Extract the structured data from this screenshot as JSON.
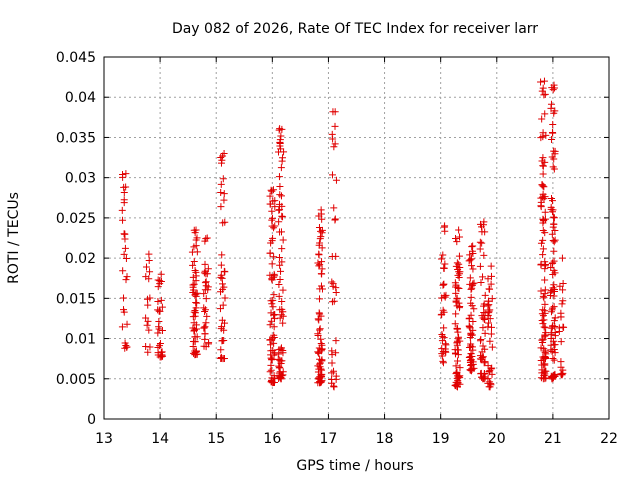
{
  "chart_data": {
    "type": "scatter",
    "title": "Day 082 of 2026, Rate Of TEC Index for receiver larr",
    "xlabel": "GPS time / hours",
    "ylabel": "ROTI / TECUs",
    "xlim": [
      13,
      22
    ],
    "ylim": [
      0,
      0.045
    ],
    "grid": true,
    "marker": "+",
    "color": "#e00000",
    "x_ticks": [
      "13",
      "14",
      "15",
      "16",
      "17",
      "18",
      "19",
      "20",
      "21",
      "22"
    ],
    "y_ticks": [
      "0",
      "0.005",
      "0.01",
      "0.015",
      "0.02",
      "0.025",
      "0.03",
      "0.035",
      "0.04",
      "0.045"
    ],
    "clusters": [
      {
        "x": 13.37,
        "y_min": 0.0088,
        "y_max": 0.0305,
        "count": 26
      },
      {
        "x": 13.78,
        "y_min": 0.0083,
        "y_max": 0.0205,
        "count": 14
      },
      {
        "x": 14.0,
        "y_min": 0.0077,
        "y_max": 0.018,
        "count": 28
      },
      {
        "x": 14.62,
        "y_min": 0.008,
        "y_max": 0.0235,
        "count": 55
      },
      {
        "x": 14.82,
        "y_min": 0.009,
        "y_max": 0.0225,
        "count": 30
      },
      {
        "x": 15.12,
        "y_min": 0.0075,
        "y_max": 0.033,
        "count": 40
      },
      {
        "x": 16.0,
        "y_min": 0.0045,
        "y_max": 0.0285,
        "count": 70
      },
      {
        "x": 16.15,
        "y_min": 0.005,
        "y_max": 0.036,
        "count": 70
      },
      {
        "x": 16.85,
        "y_min": 0.0045,
        "y_max": 0.026,
        "count": 75
      },
      {
        "x": 17.1,
        "y_min": 0.004,
        "y_max": 0.0382,
        "count": 30
      },
      {
        "x": 19.05,
        "y_min": 0.007,
        "y_max": 0.024,
        "count": 35
      },
      {
        "x": 19.3,
        "y_min": 0.004,
        "y_max": 0.0235,
        "count": 70
      },
      {
        "x": 19.55,
        "y_min": 0.006,
        "y_max": 0.0215,
        "count": 60
      },
      {
        "x": 19.75,
        "y_min": 0.005,
        "y_max": 0.0245,
        "count": 45
      },
      {
        "x": 19.88,
        "y_min": 0.004,
        "y_max": 0.019,
        "count": 35
      },
      {
        "x": 20.83,
        "y_min": 0.005,
        "y_max": 0.042,
        "count": 95
      },
      {
        "x": 21.0,
        "y_min": 0.005,
        "y_max": 0.0415,
        "count": 85
      },
      {
        "x": 21.15,
        "y_min": 0.0055,
        "y_max": 0.02,
        "count": 20
      }
    ],
    "outliers": [
      {
        "x": 17.08,
        "y": 0.0382
      },
      {
        "x": 17.12,
        "y": 0.0342
      },
      {
        "x": 16.13,
        "y": 0.0361
      },
      {
        "x": 16.2,
        "y": 0.0332
      },
      {
        "x": 20.78,
        "y": 0.0419
      },
      {
        "x": 20.8,
        "y": 0.0373
      },
      {
        "x": 20.82,
        "y": 0.0351
      },
      {
        "x": 20.98,
        "y": 0.0412
      },
      {
        "x": 15.08,
        "y": 0.0325
      },
      {
        "x": 13.35,
        "y": 0.0288
      },
      {
        "x": 13.33,
        "y": 0.0304
      }
    ]
  }
}
